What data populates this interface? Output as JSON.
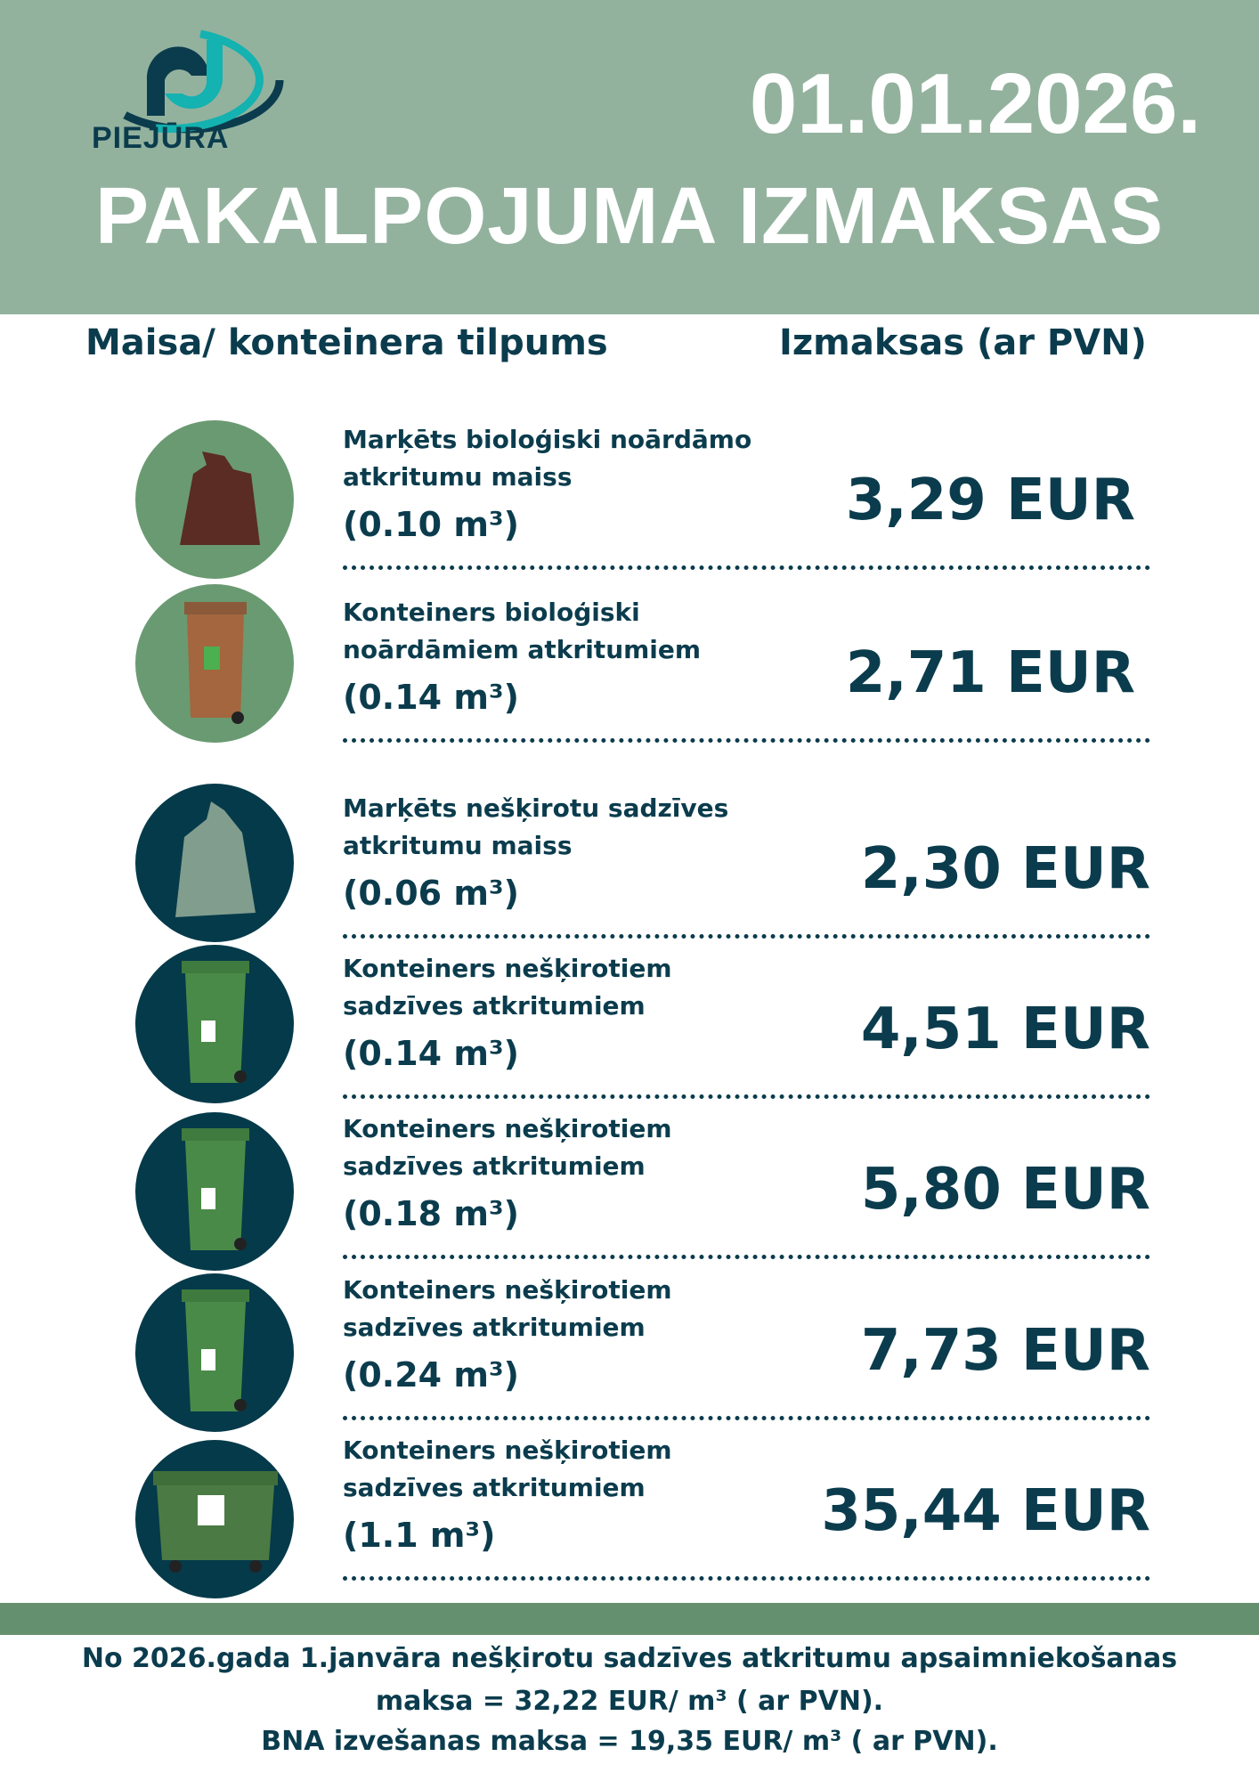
{
  "header": {
    "logo_text": "PIEJŪRA",
    "date": "01.01.2026.",
    "title": "PAKALPOJUMA IZMAKSAS",
    "bg_color": "#93b29e"
  },
  "columns": {
    "left": "Maisa/ konteinera tilpums",
    "right": "Izmaksas (ar PVN)"
  },
  "items": [
    {
      "line1": "Marķēts bioloģiski noārdāmo",
      "line2": "atkritumu maiss",
      "volume": "(0.10 m³)",
      "price": "3,29 EUR",
      "icon": "brown-bag-icon"
    },
    {
      "line1": "Konteiners bioloģiski",
      "line2": "noārdāmiem atkritumiem",
      "volume": "(0.14 m³)",
      "price": "2,71 EUR",
      "icon": "brown-bin-icon"
    },
    {
      "line1": "Marķēts nešķirotu sadzīves",
      "line2": "atkritumu maiss",
      "volume": "(0.06 m³)",
      "price": "2,30 EUR",
      "icon": "green-bag-icon"
    },
    {
      "line1": "Konteiners nešķirotiem",
      "line2": "sadzīves atkritumiem",
      "volume": "(0.14 m³)",
      "price": "4,51 EUR",
      "icon": "green-bin-icon"
    },
    {
      "line1": "Konteiners nešķirotiem",
      "line2": "sadzīves atkritumiem",
      "volume": "(0.18 m³)",
      "price": "5,80 EUR",
      "icon": "green-bin-icon"
    },
    {
      "line1": "Konteiners nešķirotiem",
      "line2": "sadzīves atkritumiem",
      "volume": "(0.24 m³)",
      "price": "7,73 EUR",
      "icon": "green-bin-icon"
    },
    {
      "line1": "Konteiners nešķirotiem",
      "line2": "sadzīves atkritumiem",
      "volume": "(1.1 m³)",
      "price": "35,44 EUR",
      "icon": "large-green-container-icon"
    }
  ],
  "footer": {
    "line1": "No 2026.gada 1.janvāra nešķirotu sadzīves atkritumu apsaimniekošanas",
    "line2": "maksa = 32,22 EUR/ m³  ( ar PVN).",
    "line3": "BNA izvešanas maksa = 19,35 EUR/ m³ ( ar PVN)."
  }
}
